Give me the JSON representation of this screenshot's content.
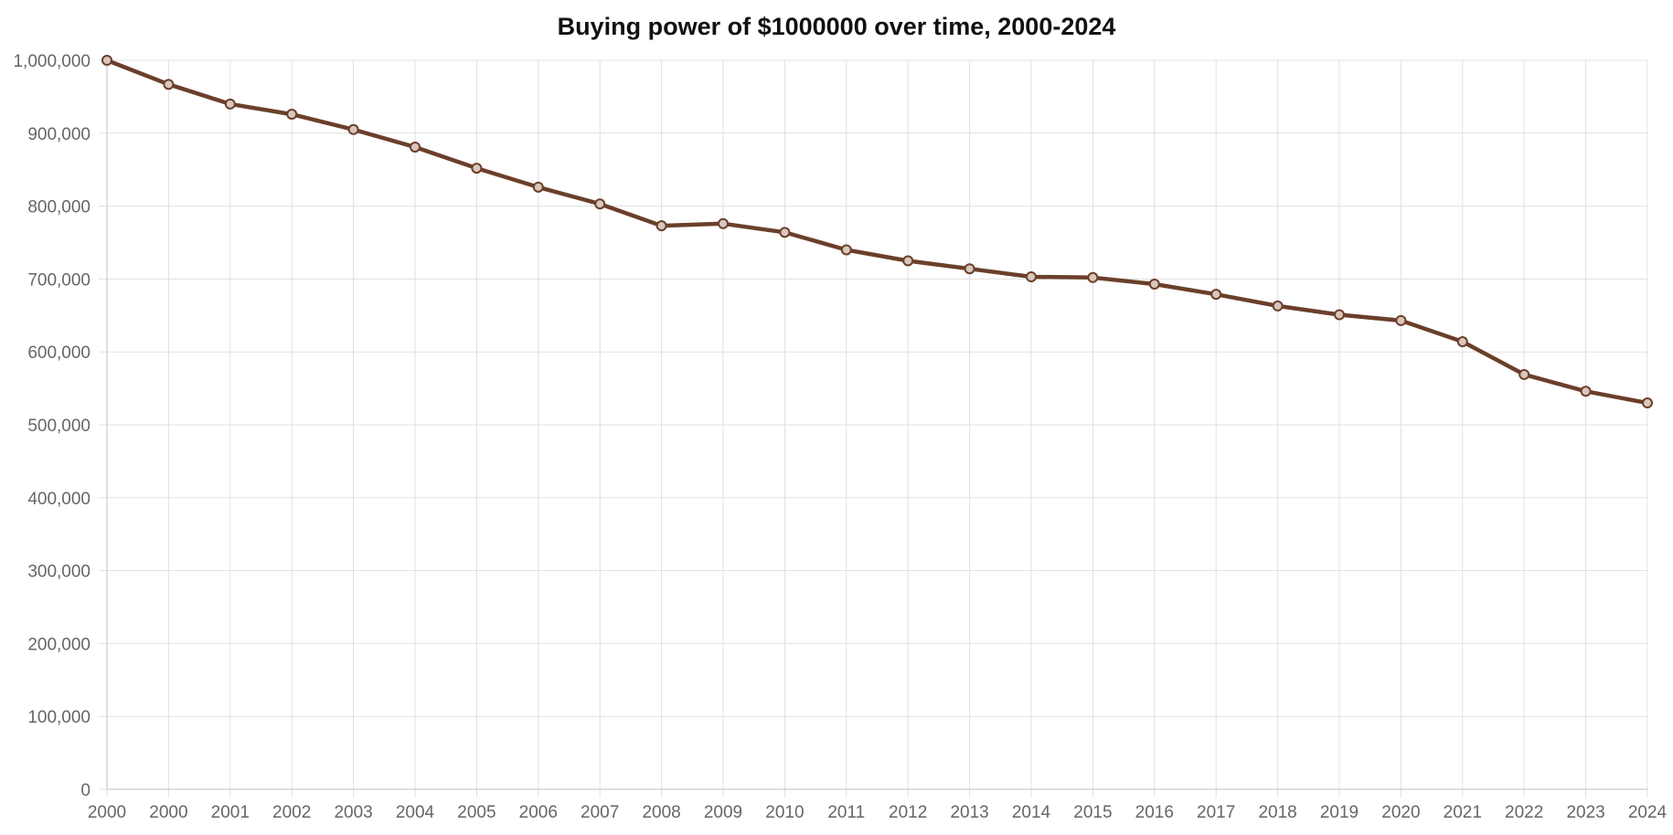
{
  "chart_data": {
    "type": "line",
    "title": "Buying power of $1000000 over time, 2000-2024",
    "xlabel": "",
    "ylabel": "",
    "categories": [
      "2000",
      "2000",
      "2001",
      "2002",
      "2003",
      "2004",
      "2005",
      "2006",
      "2007",
      "2008",
      "2009",
      "2010",
      "2011",
      "2012",
      "2013",
      "2014",
      "2015",
      "2016",
      "2017",
      "2018",
      "2019",
      "2020",
      "2021",
      "2022",
      "2023",
      "2024"
    ],
    "series": [
      {
        "name": "Buying power",
        "values": [
          1000000,
          967000,
          940000,
          926000,
          905000,
          881000,
          852000,
          826000,
          803000,
          773000,
          776000,
          764000,
          740000,
          725000,
          714000,
          703000,
          702000,
          693000,
          679000,
          663000,
          651000,
          643000,
          614000,
          569000,
          546000,
          530000
        ]
      }
    ],
    "ylim": [
      0,
      1000000
    ],
    "yticks": [
      0,
      100000,
      200000,
      300000,
      400000,
      500000,
      600000,
      700000,
      800000,
      900000,
      1000000
    ],
    "ytick_labels": [
      "0",
      "100,000",
      "200,000",
      "300,000",
      "400,000",
      "500,000",
      "600,000",
      "700,000",
      "800,000",
      "900,000",
      "1,000,000"
    ],
    "grid": true,
    "legend": "none",
    "colors": {
      "line": "#6b3f2a",
      "grid": "#e0e0e0",
      "axis": "#cccccc",
      "tick_text": "#666666"
    }
  }
}
